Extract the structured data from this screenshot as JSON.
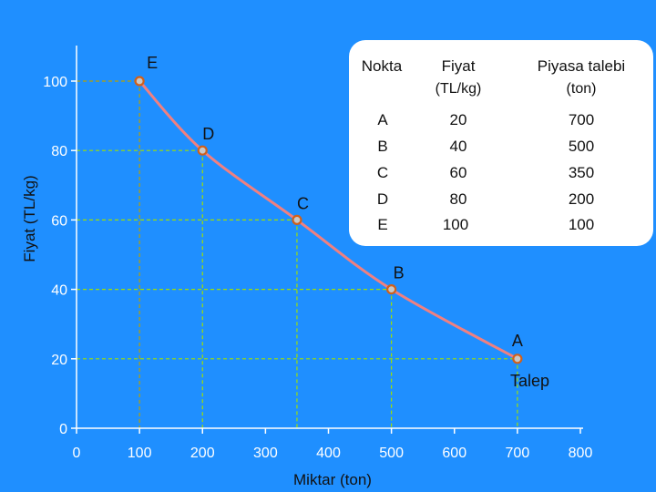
{
  "colors": {
    "background": "#1f8fff",
    "axis": "#ffffff",
    "curve": "#f08080",
    "marker_fill": "#c8c8c8",
    "marker_stroke": "#d0601a",
    "guide_green": "#a0e000",
    "guide_olive": "#b8a000",
    "table_bg": "#ffffff"
  },
  "chart_data": {
    "type": "line",
    "title": "",
    "xlabel": "Miktar (ton)",
    "ylabel": "Fiyat (TL/kg)",
    "xlim": [
      0,
      800
    ],
    "ylim": [
      0,
      100
    ],
    "x_ticks": [
      "0",
      "100",
      "200",
      "300",
      "400",
      "500",
      "600",
      "700",
      "800"
    ],
    "y_ticks": [
      "0",
      "20",
      "40",
      "60",
      "80",
      "100"
    ],
    "series": [
      {
        "name": "Talep",
        "points": [
          {
            "label": "E",
            "x": 100,
            "y": 100
          },
          {
            "label": "D",
            "x": 200,
            "y": 80
          },
          {
            "label": "C",
            "x": 350,
            "y": 60
          },
          {
            "label": "B",
            "x": 500,
            "y": 40
          },
          {
            "label": "A",
            "x": 700,
            "y": 20
          }
        ]
      }
    ],
    "grid": false
  },
  "table": {
    "headers": [
      {
        "line1": "Nokta",
        "line2": ""
      },
      {
        "line1": "Fiyat",
        "line2": "(TL/kg)"
      },
      {
        "line1": "Piyasa talebi",
        "line2": "(ton)"
      }
    ],
    "rows": [
      [
        "A",
        "20",
        "700"
      ],
      [
        "B",
        "40",
        "500"
      ],
      [
        "C",
        "60",
        "350"
      ],
      [
        "D",
        "80",
        "200"
      ],
      [
        "E",
        "100",
        "100"
      ]
    ]
  }
}
